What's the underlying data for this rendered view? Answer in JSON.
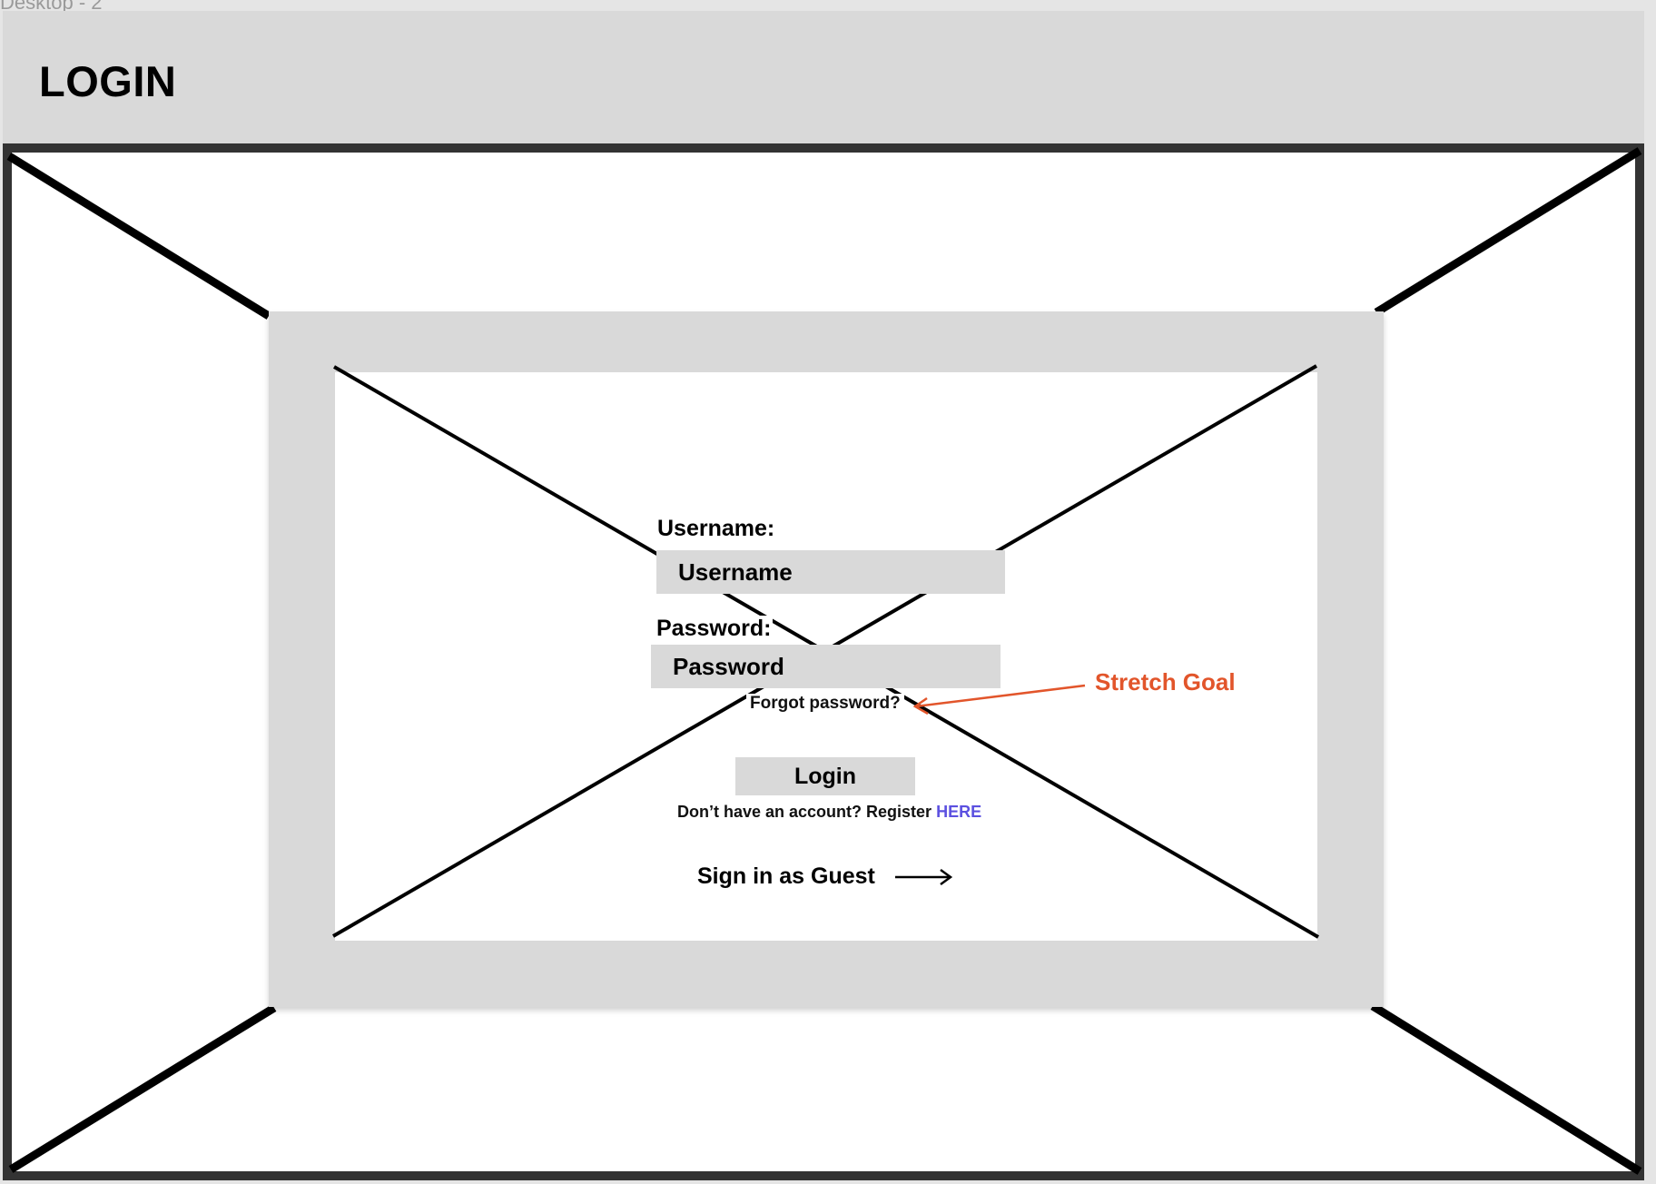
{
  "frame": {
    "label": "Desktop - 2"
  },
  "header": {
    "title": "LOGIN"
  },
  "form": {
    "username_label": "Username:",
    "username_placeholder": "Username",
    "password_label": "Password:",
    "password_placeholder": "Password",
    "forgot_link": "Forgot password?",
    "login_button": "Login",
    "register_prompt": "Don’t have an account?  Register",
    "register_link": "HERE",
    "guest_label": "Sign in as Guest"
  },
  "annotation": {
    "text": "Stretch Goal",
    "color": "#e2552b"
  },
  "colors": {
    "placeholder_fill": "#d9d9d9",
    "border": "#333333",
    "link": "#5b50e0"
  }
}
